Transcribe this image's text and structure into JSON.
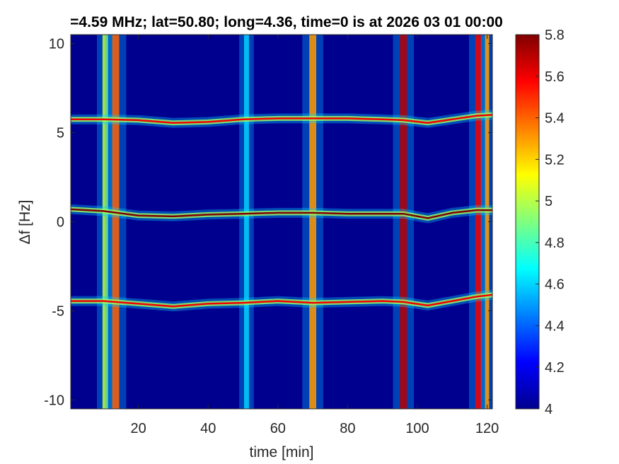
{
  "chart_data": {
    "type": "heatmap",
    "title": "=4.59 MHz;  lat=50.80; long=4.36, time=0 is at 2026 03 01 00:00",
    "xlabel": "time [min]",
    "ylabel": "Δf [Hz]",
    "xlim": [
      0.6,
      121.5
    ],
    "ylim": [
      -10.5,
      10.5
    ],
    "xticks": [
      20,
      40,
      60,
      80,
      100,
      120
    ],
    "xtick_labels": [
      "20",
      "40",
      "60",
      "80",
      "100",
      "120"
    ],
    "yticks": [
      -10,
      -5,
      0,
      5,
      10
    ],
    "ytick_labels": [
      "-10",
      "-5",
      "0",
      "5",
      "10"
    ],
    "colorbar": {
      "colormap": "jet",
      "range": [
        4,
        5.8
      ],
      "ticks": [
        4,
        4.2,
        4.4,
        4.6,
        4.8,
        5,
        5.2,
        5.4,
        5.6,
        5.8
      ],
      "tick_labels": [
        "4",
        "4.2",
        "4.4",
        "4.6",
        "4.8",
        "5",
        "5.2",
        "5.4",
        "5.6",
        "5.8"
      ]
    },
    "background_value": 4.0,
    "horizontal_traces": [
      {
        "approx_df_hz": 5.7,
        "points": [
          [
            0.6,
            5.75
          ],
          [
            10,
            5.75
          ],
          [
            20,
            5.7
          ],
          [
            30,
            5.55
          ],
          [
            40,
            5.6
          ],
          [
            50,
            5.75
          ],
          [
            60,
            5.8
          ],
          [
            70,
            5.8
          ],
          [
            80,
            5.8
          ],
          [
            90,
            5.75
          ],
          [
            96,
            5.7
          ],
          [
            103,
            5.55
          ],
          [
            110,
            5.75
          ],
          [
            117,
            5.95
          ],
          [
            121.5,
            6.0
          ]
        ],
        "peak_value": 5.6
      },
      {
        "approx_df_hz": 0.5,
        "points": [
          [
            0.6,
            0.7
          ],
          [
            10,
            0.6
          ],
          [
            20,
            0.35
          ],
          [
            30,
            0.3
          ],
          [
            40,
            0.4
          ],
          [
            50,
            0.45
          ],
          [
            60,
            0.5
          ],
          [
            70,
            0.5
          ],
          [
            80,
            0.45
          ],
          [
            90,
            0.45
          ],
          [
            96,
            0.45
          ],
          [
            103,
            0.2
          ],
          [
            110,
            0.5
          ],
          [
            117,
            0.65
          ],
          [
            121.5,
            0.65
          ]
        ],
        "peak_value": 5.8
      },
      {
        "approx_df_hz": -4.5,
        "points": [
          [
            0.6,
            -4.45
          ],
          [
            10,
            -4.45
          ],
          [
            20,
            -4.6
          ],
          [
            30,
            -4.75
          ],
          [
            40,
            -4.6
          ],
          [
            50,
            -4.55
          ],
          [
            60,
            -4.45
          ],
          [
            70,
            -4.55
          ],
          [
            80,
            -4.5
          ],
          [
            90,
            -4.45
          ],
          [
            96,
            -4.5
          ],
          [
            103,
            -4.7
          ],
          [
            110,
            -4.45
          ],
          [
            117,
            -4.2
          ],
          [
            121.5,
            -4.1
          ]
        ],
        "peak_value": 5.6
      }
    ],
    "vertical_traces": [
      {
        "time_min": 10.5,
        "half_width_min": 0.8,
        "peak_value": 5.0
      },
      {
        "time_min": 13.5,
        "half_width_min": 1.0,
        "peak_value": 5.4
      },
      {
        "time_min": 51.0,
        "half_width_min": 0.7,
        "peak_value": 4.6
      },
      {
        "time_min": 70.0,
        "half_width_min": 1.0,
        "peak_value": 5.3
      },
      {
        "time_min": 96.0,
        "half_width_min": 1.0,
        "peak_value": 5.7
      },
      {
        "time_min": 117.5,
        "half_width_min": 0.9,
        "peak_value": 5.6
      },
      {
        "time_min": 120.0,
        "half_width_min": 0.6,
        "peak_value": 5.3
      }
    ]
  }
}
